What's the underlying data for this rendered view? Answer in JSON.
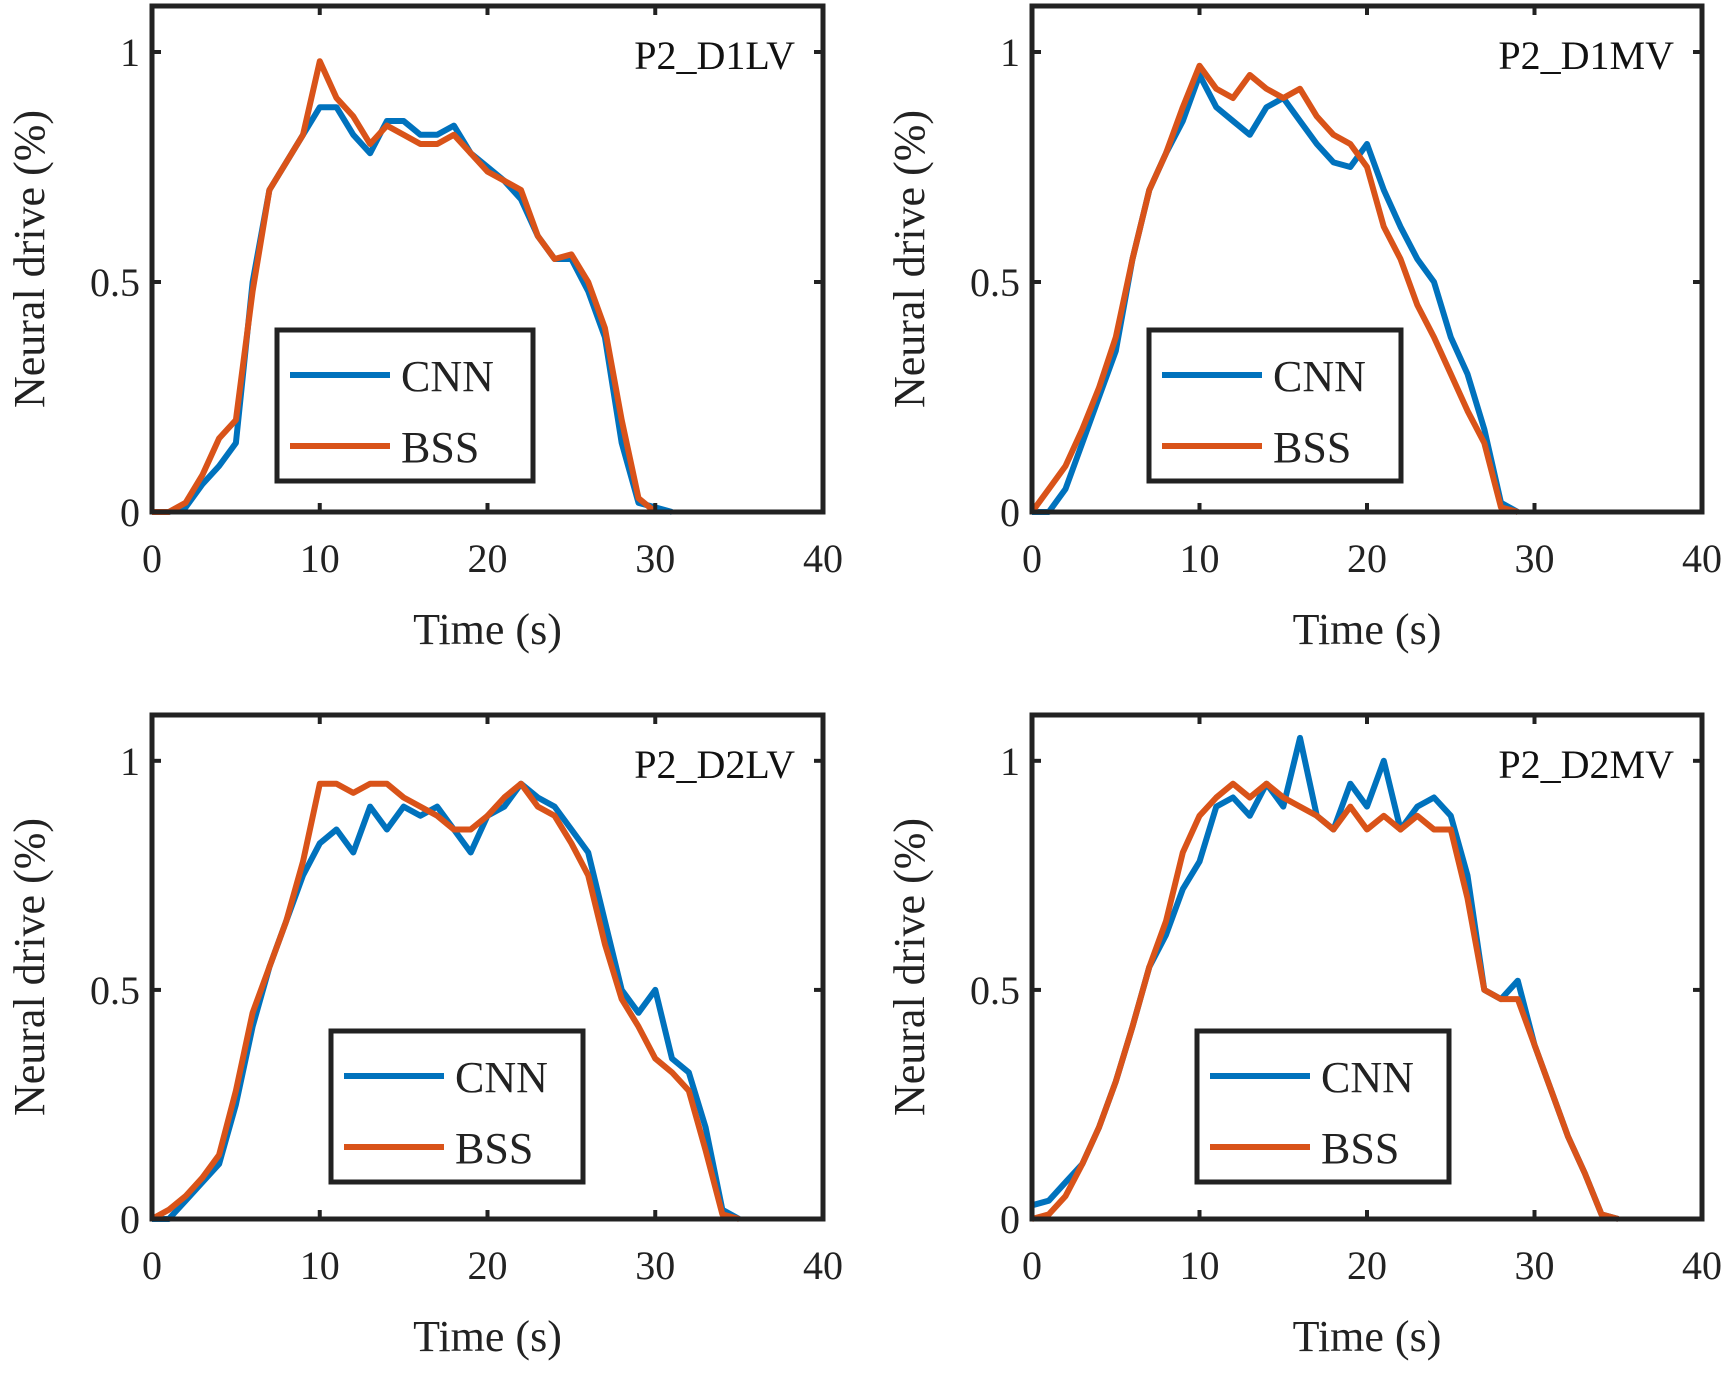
{
  "colors": {
    "CNN": "#0072BD",
    "BSS": "#D95319"
  },
  "chart_data": [
    {
      "type": "line",
      "annotation": "P2_D1LV",
      "xlabel": "Time (s)",
      "ylabel": "Neural drive (%)",
      "xlim": [
        0,
        40
      ],
      "ylim": [
        0,
        1.1
      ],
      "xticks": [
        "0",
        "10",
        "20",
        "30",
        "40"
      ],
      "yticks": [
        "0",
        "0.5",
        "1"
      ],
      "legend": "lower-center",
      "grid": false,
      "series": [
        {
          "name": "CNN",
          "x": [
            0,
            1,
            2,
            3,
            4,
            5,
            6,
            7,
            8,
            9,
            10,
            11,
            12,
            13,
            14,
            15,
            16,
            17,
            18,
            19,
            20,
            21,
            22,
            23,
            24,
            25,
            26,
            27,
            28,
            29,
            30,
            31
          ],
          "y": [
            0,
            0,
            0.01,
            0.06,
            0.1,
            0.15,
            0.5,
            0.7,
            0.76,
            0.82,
            0.88,
            0.88,
            0.82,
            0.78,
            0.85,
            0.85,
            0.82,
            0.82,
            0.84,
            0.78,
            0.75,
            0.72,
            0.68,
            0.6,
            0.55,
            0.55,
            0.48,
            0.38,
            0.15,
            0.02,
            0.01,
            0
          ]
        },
        {
          "name": "BSS",
          "x": [
            0,
            1,
            2,
            3,
            4,
            5,
            6,
            7,
            8,
            9,
            10,
            11,
            12,
            13,
            14,
            15,
            16,
            17,
            18,
            19,
            20,
            21,
            22,
            23,
            24,
            25,
            26,
            27,
            28,
            29,
            30
          ],
          "y": [
            0,
            0,
            0.02,
            0.08,
            0.16,
            0.2,
            0.48,
            0.7,
            0.76,
            0.82,
            0.98,
            0.9,
            0.86,
            0.8,
            0.84,
            0.82,
            0.8,
            0.8,
            0.82,
            0.78,
            0.74,
            0.72,
            0.7,
            0.6,
            0.55,
            0.56,
            0.5,
            0.4,
            0.2,
            0.03,
            0
          ]
        }
      ]
    },
    {
      "type": "line",
      "annotation": "P2_D1MV",
      "xlabel": "Time (s)",
      "ylabel": "Neural drive (%)",
      "xlim": [
        0,
        40
      ],
      "ylim": [
        0,
        1.1
      ],
      "xticks": [
        "0",
        "10",
        "20",
        "30",
        "40"
      ],
      "yticks": [
        "0",
        "0.5",
        "1"
      ],
      "legend": "lower-center",
      "grid": false,
      "series": [
        {
          "name": "CNN",
          "x": [
            0,
            1,
            2,
            3,
            4,
            5,
            6,
            7,
            8,
            9,
            10,
            11,
            12,
            13,
            14,
            15,
            16,
            17,
            18,
            19,
            20,
            21,
            22,
            23,
            24,
            25,
            26,
            27,
            28,
            29
          ],
          "y": [
            0,
            0,
            0.05,
            0.15,
            0.25,
            0.35,
            0.55,
            0.7,
            0.78,
            0.85,
            0.95,
            0.88,
            0.85,
            0.82,
            0.88,
            0.9,
            0.85,
            0.8,
            0.76,
            0.75,
            0.8,
            0.7,
            0.62,
            0.55,
            0.5,
            0.38,
            0.3,
            0.18,
            0.02,
            0
          ]
        },
        {
          "name": "BSS",
          "x": [
            0,
            1,
            2,
            3,
            4,
            5,
            6,
            7,
            8,
            9,
            10,
            11,
            12,
            13,
            14,
            15,
            16,
            17,
            18,
            19,
            20,
            21,
            22,
            23,
            24,
            25,
            26,
            27,
            28,
            29
          ],
          "y": [
            0,
            0.05,
            0.1,
            0.18,
            0.27,
            0.38,
            0.55,
            0.7,
            0.78,
            0.88,
            0.97,
            0.92,
            0.9,
            0.95,
            0.92,
            0.9,
            0.92,
            0.86,
            0.82,
            0.8,
            0.75,
            0.62,
            0.55,
            0.45,
            0.38,
            0.3,
            0.22,
            0.15,
            0.01,
            0
          ]
        }
      ]
    },
    {
      "type": "line",
      "annotation": "P2_D2LV",
      "xlabel": "Time (s)",
      "ylabel": "Neural drive (%)",
      "xlim": [
        0,
        40
      ],
      "ylim": [
        0,
        1.1
      ],
      "xticks": [
        "0",
        "10",
        "20",
        "30",
        "40"
      ],
      "yticks": [
        "0",
        "0.5",
        "1"
      ],
      "legend": "lower-center",
      "grid": false,
      "series": [
        {
          "name": "CNN",
          "x": [
            0,
            1,
            2,
            3,
            4,
            5,
            6,
            7,
            8,
            9,
            10,
            11,
            12,
            13,
            14,
            15,
            16,
            17,
            18,
            19,
            20,
            21,
            22,
            23,
            24,
            25,
            26,
            27,
            28,
            29,
            30,
            31,
            32,
            33,
            34,
            35
          ],
          "y": [
            0,
            0,
            0.04,
            0.08,
            0.12,
            0.25,
            0.42,
            0.55,
            0.65,
            0.75,
            0.82,
            0.85,
            0.8,
            0.9,
            0.85,
            0.9,
            0.88,
            0.9,
            0.85,
            0.8,
            0.88,
            0.9,
            0.95,
            0.92,
            0.9,
            0.85,
            0.8,
            0.65,
            0.5,
            0.45,
            0.5,
            0.35,
            0.32,
            0.2,
            0.02,
            0
          ]
        },
        {
          "name": "BSS",
          "x": [
            0,
            1,
            2,
            3,
            4,
            5,
            6,
            7,
            8,
            9,
            10,
            11,
            12,
            13,
            14,
            15,
            16,
            17,
            18,
            19,
            20,
            21,
            22,
            23,
            24,
            25,
            26,
            27,
            28,
            29,
            30,
            31,
            32,
            33,
            34,
            35
          ],
          "y": [
            0,
            0.02,
            0.05,
            0.09,
            0.14,
            0.28,
            0.45,
            0.55,
            0.65,
            0.78,
            0.95,
            0.95,
            0.93,
            0.95,
            0.95,
            0.92,
            0.9,
            0.88,
            0.85,
            0.85,
            0.88,
            0.92,
            0.95,
            0.9,
            0.88,
            0.82,
            0.75,
            0.6,
            0.48,
            0.42,
            0.35,
            0.32,
            0.28,
            0.15,
            0.01,
            0
          ]
        }
      ]
    },
    {
      "type": "line",
      "annotation": "P2_D2MV",
      "xlabel": "Time (s)",
      "ylabel": "Neural drive (%)",
      "xlim": [
        0,
        40
      ],
      "ylim": [
        0,
        1.1
      ],
      "xticks": [
        "0",
        "10",
        "20",
        "30",
        "40"
      ],
      "yticks": [
        "0",
        "0.5",
        "1"
      ],
      "legend": "lower-center",
      "grid": false,
      "series": [
        {
          "name": "CNN",
          "x": [
            0,
            1,
            2,
            3,
            4,
            5,
            6,
            7,
            8,
            9,
            10,
            11,
            12,
            13,
            14,
            15,
            16,
            17,
            18,
            19,
            20,
            21,
            22,
            23,
            24,
            25,
            26,
            27,
            28,
            29,
            30,
            31,
            32,
            33,
            34,
            35
          ],
          "y": [
            0.03,
            0.04,
            0.08,
            0.12,
            0.2,
            0.3,
            0.42,
            0.55,
            0.62,
            0.72,
            0.78,
            0.9,
            0.92,
            0.88,
            0.95,
            0.9,
            1.05,
            0.88,
            0.85,
            0.95,
            0.9,
            1.0,
            0.85,
            0.9,
            0.92,
            0.88,
            0.75,
            0.5,
            0.48,
            0.52,
            0.38,
            0.28,
            0.18,
            0.1,
            0.01,
            0
          ]
        },
        {
          "name": "BSS",
          "x": [
            0,
            1,
            2,
            3,
            4,
            5,
            6,
            7,
            8,
            9,
            10,
            11,
            12,
            13,
            14,
            15,
            16,
            17,
            18,
            19,
            20,
            21,
            22,
            23,
            24,
            25,
            26,
            27,
            28,
            29,
            30,
            31,
            32,
            33,
            34,
            35
          ],
          "y": [
            0,
            0.01,
            0.05,
            0.12,
            0.2,
            0.3,
            0.42,
            0.55,
            0.65,
            0.8,
            0.88,
            0.92,
            0.95,
            0.92,
            0.95,
            0.92,
            0.9,
            0.88,
            0.85,
            0.9,
            0.85,
            0.88,
            0.85,
            0.88,
            0.85,
            0.85,
            0.7,
            0.5,
            0.48,
            0.48,
            0.38,
            0.28,
            0.18,
            0.1,
            0.01,
            0
          ]
        }
      ]
    }
  ]
}
